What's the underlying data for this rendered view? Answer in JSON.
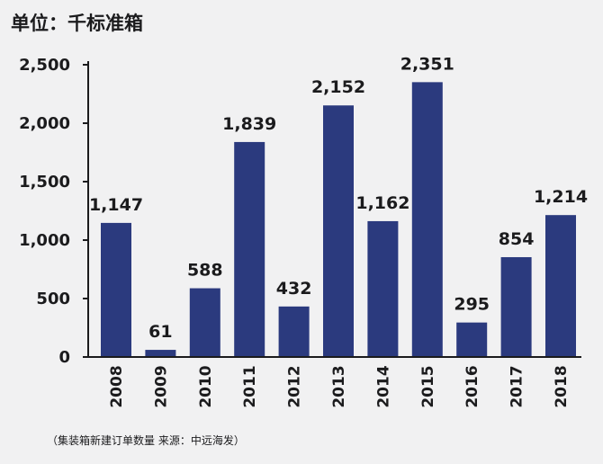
{
  "chart_data": {
    "type": "bar",
    "unit_label": "单位：千标准箱",
    "categories": [
      "2008",
      "2009",
      "2010",
      "2011",
      "2012",
      "2013",
      "2014",
      "2015",
      "2016",
      "2017",
      "2018"
    ],
    "values": [
      1147,
      61,
      588,
      1839,
      432,
      2152,
      1162,
      2351,
      295,
      854,
      1214
    ],
    "value_labels": [
      "1,147",
      "61",
      "588",
      "1,839",
      "432",
      "2,152",
      "1,162",
      "2,351",
      "295",
      "854",
      "1,214"
    ],
    "y_ticks": [
      0,
      500,
      1000,
      1500,
      2000,
      2500
    ],
    "y_tick_labels": [
      "0",
      "500",
      "1,000",
      "1,500",
      "2,000",
      "2,500"
    ],
    "ylim": [
      0,
      2500
    ],
    "grid": false,
    "bar_color": "#2b3a7e",
    "caption": "（集装箱新建订单数量   来源：中远海发）"
  }
}
